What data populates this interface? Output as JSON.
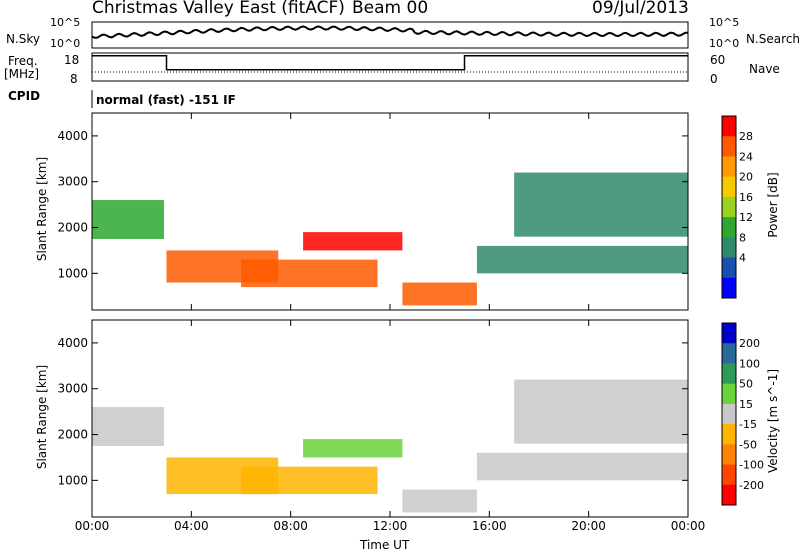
{
  "header": {
    "station": "Christmas Valley East (fitACF)",
    "beam": "Beam 00",
    "date": "09/Jul/2013"
  },
  "params": {
    "nsky_label": "N.Sky",
    "nsky_ticks": [
      "10^5",
      "10^0"
    ],
    "nsearch_label": "N.Search",
    "nsearch_ticks": [
      "10^5",
      "10^0"
    ],
    "freq_label": "Freq.",
    "freq_unit": "[MHz]",
    "freq_ticks": [
      "18",
      "8"
    ],
    "nave_label": "Nave",
    "nave_ticks": [
      "60",
      "0"
    ],
    "cpid_label": "CPID",
    "cpid_text": "normal (fast) -151 IF"
  },
  "chart_data": [
    {
      "type": "heatmap",
      "panel": "power",
      "ylabel": "Slant Range [km]",
      "xlabel": "Time UT",
      "x_ticks": [
        "00:00",
        "04:00",
        "08:00",
        "12:00",
        "16:00",
        "20:00",
        "00:00"
      ],
      "y_ticks": [
        1000,
        2000,
        3000,
        4000
      ],
      "ylim": [
        200,
        4500
      ],
      "xlim_hours": [
        0,
        24
      ],
      "colorbar": {
        "label": "Power [dB]",
        "ticks": [
          "28",
          "24",
          "20",
          "16",
          "12",
          "8",
          "4"
        ],
        "colors": [
          "#ff0000",
          "#ff5a00",
          "#ff9a00",
          "#f5c800",
          "#9ad21e",
          "#2ea82e",
          "#2f8a6a",
          "#1a50b0",
          "#0000ff"
        ]
      },
      "regions": [
        {
          "t0": 0.0,
          "t1": 2.9,
          "r0": 1750,
          "r1": 2600,
          "level": 10
        },
        {
          "t0": 3.0,
          "t1": 7.5,
          "r0": 800,
          "r1": 1500,
          "level": 26
        },
        {
          "t0": 6.0,
          "t1": 11.5,
          "r0": 700,
          "r1": 1300,
          "level": 24
        },
        {
          "t0": 8.5,
          "t1": 12.5,
          "r0": 1500,
          "r1": 1900,
          "level": 28
        },
        {
          "t0": 12.5,
          "t1": 15.5,
          "r0": 300,
          "r1": 800,
          "level": 24
        },
        {
          "t0": 15.5,
          "t1": 24.0,
          "r0": 1000,
          "r1": 1600,
          "level": 6
        },
        {
          "t0": 17.0,
          "t1": 24.0,
          "r0": 1800,
          "r1": 3200,
          "level": 6
        }
      ]
    },
    {
      "type": "heatmap",
      "panel": "velocity",
      "ylabel": "Slant Range [km]",
      "xlabel": "Time UT",
      "x_ticks": [
        "00:00",
        "04:00",
        "08:00",
        "12:00",
        "16:00",
        "20:00",
        "00:00"
      ],
      "y_ticks": [
        1000,
        2000,
        3000,
        4000
      ],
      "ylim": [
        200,
        4500
      ],
      "xlim_hours": [
        0,
        24
      ],
      "colorbar": {
        "label": "Velocity [m s^-1]",
        "ticks": [
          "200",
          "100",
          "50",
          "15",
          "-15",
          "-50",
          "-100",
          "-200"
        ],
        "colors": [
          "#0000c8",
          "#2a6a9a",
          "#2e9a5a",
          "#6ad23a",
          "#c8c8c8",
          "#ffb400",
          "#ff8200",
          "#ff4600",
          "#ff0000"
        ]
      },
      "regions": [
        {
          "t0": 0.0,
          "t1": 2.9,
          "r0": 1750,
          "r1": 2600,
          "level": 0
        },
        {
          "t0": 3.0,
          "t1": 7.5,
          "r0": 700,
          "r1": 1500,
          "level": -20
        },
        {
          "t0": 6.0,
          "t1": 11.5,
          "r0": 700,
          "r1": 1300,
          "level": -30
        },
        {
          "t0": 8.5,
          "t1": 12.5,
          "r0": 1500,
          "r1": 1900,
          "level": 30
        },
        {
          "t0": 12.5,
          "t1": 15.5,
          "r0": 300,
          "r1": 800,
          "level": 0
        },
        {
          "t0": 15.5,
          "t1": 24.0,
          "r0": 1000,
          "r1": 1600,
          "level": 0
        },
        {
          "t0": 17.0,
          "t1": 24.0,
          "r0": 1800,
          "r1": 3200,
          "level": 0
        }
      ]
    }
  ]
}
